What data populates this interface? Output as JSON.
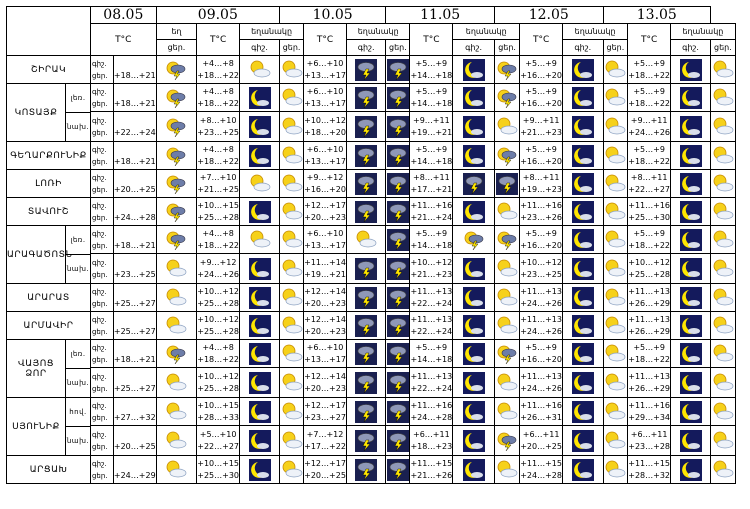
{
  "header": {
    "tc": "T°C",
    "weather": "եղանակը",
    "weather_cut": "եղ",
    "day": "ցեր.",
    "night": "գիշ.",
    "dates": [
      "08.05",
      "09.05",
      "10.05",
      "11.05",
      "12.05",
      "13.05"
    ]
  },
  "row_labels": {
    "night": "գիշ.",
    "day": "ցեր."
  },
  "regions": [
    {
      "name": "ՇԻՐԱԿ",
      "rows": [
        {
          "sub": "",
          "temps": [
            [
              "",
              "+18…+21"
            ],
            [
              "+4…+8",
              "+18…+22"
            ],
            [
              "+6…+10",
              "+13…+17"
            ],
            [
              "+5…+9",
              "+14…+18"
            ],
            [
              "+5…+9",
              "+16…+20"
            ],
            [
              "+5…+9",
              "+18…+22"
            ]
          ],
          "icons": [
            [
              "",
              "sun-storm"
            ],
            [
              "sun-cloud",
              "sun-cloud"
            ],
            [
              "storm",
              "storm"
            ],
            [
              "moon",
              "sun-storm"
            ],
            [
              "moon",
              "sun-cloud"
            ],
            [
              "moon",
              "sun-cloud"
            ]
          ]
        }
      ]
    },
    {
      "name": "ԿՈՏԱՅՔ",
      "rows": [
        {
          "sub": "լեռ.",
          "temps": [
            [
              "",
              "+18…+21"
            ],
            [
              "+4…+8",
              "+18…+22"
            ],
            [
              "+6…+10",
              "+13…+17"
            ],
            [
              "+5…+9",
              "+14…+18"
            ],
            [
              "+5…+9",
              "+16…+20"
            ],
            [
              "+5…+9",
              "+18…+22"
            ]
          ],
          "icons": [
            [
              "",
              "sun-storm"
            ],
            [
              "moon",
              "sun-cloud"
            ],
            [
              "storm",
              "storm"
            ],
            [
              "moon",
              "sun-storm"
            ],
            [
              "moon",
              "sun-cloud"
            ],
            [
              "moon",
              "sun-cloud"
            ]
          ]
        },
        {
          "sub": "նախ.",
          "temps": [
            [
              "",
              "+22…+24"
            ],
            [
              "+8…+10",
              "+23…+25"
            ],
            [
              "+10…+12",
              "+18…+20"
            ],
            [
              "+9…+11",
              "+19…+21"
            ],
            [
              "+9…+11",
              "+21…+23"
            ],
            [
              "+9…+11",
              "+24…+26"
            ]
          ],
          "icons": [
            [
              "",
              "sun-storm"
            ],
            [
              "moon",
              "sun-cloud"
            ],
            [
              "storm",
              "storm"
            ],
            [
              "moon",
              "sun-cloud"
            ],
            [
              "moon",
              "sun-cloud"
            ],
            [
              "moon",
              "sun-cloud"
            ]
          ]
        }
      ]
    },
    {
      "name": "ԳԵՂԱՐՔՈՒՆԻՔ",
      "rows": [
        {
          "sub": "",
          "temps": [
            [
              "",
              "+18…+21"
            ],
            [
              "+4…+8",
              "+18…+22"
            ],
            [
              "+6…+10",
              "+13…+17"
            ],
            [
              "+5…+9",
              "+14…+18"
            ],
            [
              "+5…+9",
              "+16…+20"
            ],
            [
              "+5…+9",
              "+18…+22"
            ]
          ],
          "icons": [
            [
              "",
              "sun-storm"
            ],
            [
              "moon",
              "sun-cloud"
            ],
            [
              "storm",
              "storm"
            ],
            [
              "moon",
              "sun-storm"
            ],
            [
              "moon",
              "sun-cloud"
            ],
            [
              "moon",
              "sun-cloud"
            ]
          ]
        }
      ]
    },
    {
      "name": "ԼՈՌԻ",
      "rows": [
        {
          "sub": "",
          "temps": [
            [
              "",
              "+20…+25"
            ],
            [
              "+7…+10",
              "+21…+25"
            ],
            [
              "+9…+12",
              "+16…+20"
            ],
            [
              "+8…+11",
              "+17…+21"
            ],
            [
              "+8…+11",
              "+19…+23"
            ],
            [
              "+8…+11",
              "+22…+27"
            ]
          ],
          "icons": [
            [
              "",
              "sun-storm"
            ],
            [
              "sun-cloud",
              "sun-cloud"
            ],
            [
              "storm",
              "storm"
            ],
            [
              "storm",
              "storm"
            ],
            [
              "moon",
              "sun-cloud"
            ],
            [
              "moon",
              "sun-cloud"
            ]
          ]
        }
      ]
    },
    {
      "name": "ՏԱՎՈՒՇ",
      "rows": [
        {
          "sub": "",
          "temps": [
            [
              "",
              "+24…+28"
            ],
            [
              "+10…+15",
              "+25…+28"
            ],
            [
              "+12…+17",
              "+20…+23"
            ],
            [
              "+11…+16",
              "+21…+24"
            ],
            [
              "+11…+16",
              "+23…+26"
            ],
            [
              "+11…+16",
              "+25…+30"
            ]
          ],
          "icons": [
            [
              "",
              "sun-storm"
            ],
            [
              "moon",
              "sun-cloud"
            ],
            [
              "storm",
              "storm"
            ],
            [
              "moon",
              "sun-cloud"
            ],
            [
              "moon",
              "sun-cloud"
            ],
            [
              "moon",
              "sun-cloud"
            ]
          ]
        }
      ]
    },
    {
      "name": "ԱՐԱԳԱԾՈՏՆ",
      "rows": [
        {
          "sub": "լեռ.",
          "temps": [
            [
              "",
              "+18…+21"
            ],
            [
              "+4…+8",
              "+18…+22"
            ],
            [
              "+6…+10",
              "+13…+17"
            ],
            [
              "+5…+9",
              "+14…+18"
            ],
            [
              "+5…+9",
              "+16…+20"
            ],
            [
              "+5…+9",
              "+18…+22"
            ]
          ],
          "icons": [
            [
              "",
              "sun-storm"
            ],
            [
              "sun-cloud",
              "sun-cloud"
            ],
            [
              "sun-cloud",
              "storm"
            ],
            [
              "sun-storm",
              "sun-storm"
            ],
            [
              "moon",
              "sun-cloud"
            ],
            [
              "moon",
              "sun-cloud"
            ]
          ]
        },
        {
          "sub": "նախ.",
          "temps": [
            [
              "",
              "+23…+25"
            ],
            [
              "+9…+12",
              "+24…+26"
            ],
            [
              "+11…+14",
              "+19…+21"
            ],
            [
              "+10…+12",
              "+21…+23"
            ],
            [
              "+10…+12",
              "+23…+25"
            ],
            [
              "+10…+12",
              "+25…+28"
            ]
          ],
          "icons": [
            [
              "",
              "sun-cloud"
            ],
            [
              "moon",
              "sun-cloud"
            ],
            [
              "storm",
              "storm"
            ],
            [
              "moon",
              "sun-cloud"
            ],
            [
              "moon",
              "sun-cloud"
            ],
            [
              "moon",
              "sun-cloud"
            ]
          ]
        }
      ]
    },
    {
      "name": "ԱՐԱՐԱՏ",
      "rows": [
        {
          "sub": "",
          "temps": [
            [
              "",
              "+25…+27"
            ],
            [
              "+10…+12",
              "+25…+28"
            ],
            [
              "+12…+14",
              "+20…+23"
            ],
            [
              "+11…+13",
              "+22…+24"
            ],
            [
              "+11…+13",
              "+24…+26"
            ],
            [
              "+11…+13",
              "+26…+29"
            ]
          ],
          "icons": [
            [
              "",
              "sun-cloud"
            ],
            [
              "moon",
              "sun-cloud"
            ],
            [
              "storm",
              "storm"
            ],
            [
              "moon",
              "sun-cloud"
            ],
            [
              "moon",
              "sun-cloud"
            ],
            [
              "moon",
              "sun-cloud"
            ]
          ]
        }
      ]
    },
    {
      "name": "ԱՐՄԱՎԻՐ",
      "rows": [
        {
          "sub": "",
          "temps": [
            [
              "",
              "+25…+27"
            ],
            [
              "+10…+12",
              "+25…+28"
            ],
            [
              "+12…+14",
              "+20…+23"
            ],
            [
              "+11…+13",
              "+22…+24"
            ],
            [
              "+11…+13",
              "+24…+26"
            ],
            [
              "+11…+13",
              "+26…+29"
            ]
          ],
          "icons": [
            [
              "",
              "sun-cloud"
            ],
            [
              "moon",
              "sun-cloud"
            ],
            [
              "storm",
              "storm"
            ],
            [
              "moon",
              "sun-cloud"
            ],
            [
              "moon",
              "sun-cloud"
            ],
            [
              "moon",
              "sun-cloud"
            ]
          ]
        }
      ]
    },
    {
      "name": "ՎԱՅՈՑ ՁՈՐ",
      "rows": [
        {
          "sub": "լեռ.",
          "temps": [
            [
              "",
              "+18…+21"
            ],
            [
              "+4…+8",
              "+18…+22"
            ],
            [
              "+6…+10",
              "+13…+17"
            ],
            [
              "+5…+9",
              "+14…+18"
            ],
            [
              "+5…+9",
              "+16…+20"
            ],
            [
              "+5…+9",
              "+18…+22"
            ]
          ],
          "icons": [
            [
              "",
              "sun-storm"
            ],
            [
              "moon",
              "sun-cloud"
            ],
            [
              "storm",
              "storm"
            ],
            [
              "moon",
              "sun-storm"
            ],
            [
              "moon",
              "sun-cloud"
            ],
            [
              "moon",
              "sun-cloud"
            ]
          ]
        },
        {
          "sub": "նախ.",
          "temps": [
            [
              "",
              "+25…+27"
            ],
            [
              "+10…+12",
              "+25…+28"
            ],
            [
              "+12…+14",
              "+20…+23"
            ],
            [
              "+11…+13",
              "+22…+24"
            ],
            [
              "+11…+13",
              "+24…+26"
            ],
            [
              "+11…+13",
              "+26…+29"
            ]
          ],
          "icons": [
            [
              "",
              "sun-cloud"
            ],
            [
              "moon",
              "sun-cloud"
            ],
            [
              "storm",
              "storm"
            ],
            [
              "moon",
              "sun-cloud"
            ],
            [
              "moon",
              "sun-cloud"
            ],
            [
              "moon",
              "sun-cloud"
            ]
          ]
        }
      ]
    },
    {
      "name": "ՍՅՈՒՆԻՔ",
      "rows": [
        {
          "sub": "հով.",
          "temps": [
            [
              "",
              "+27…+32"
            ],
            [
              "+10…+15",
              "+28…+33"
            ],
            [
              "+12…+17",
              "+23…+27"
            ],
            [
              "+11…+16",
              "+24…+28"
            ],
            [
              "+11…+16",
              "+26…+31"
            ],
            [
              "+11…+16",
              "+29…+34"
            ]
          ],
          "icons": [
            [
              "",
              "sun-cloud"
            ],
            [
              "moon",
              "sun-cloud"
            ],
            [
              "storm",
              "storm"
            ],
            [
              "moon",
              "sun-cloud"
            ],
            [
              "moon",
              "sun-cloud"
            ],
            [
              "moon",
              "sun-cloud"
            ]
          ]
        },
        {
          "sub": "նախ.",
          "temps": [
            [
              "",
              "+20…+25"
            ],
            [
              "+5…+10",
              "+22…+27"
            ],
            [
              "+7…+12",
              "+17…+22"
            ],
            [
              "+6…+11",
              "+18…+23"
            ],
            [
              "+6…+11",
              "+20…+25"
            ],
            [
              "+6…+11",
              "+23…+28"
            ]
          ],
          "icons": [
            [
              "",
              "sun-cloud"
            ],
            [
              "moon",
              "sun-cloud"
            ],
            [
              "storm",
              "storm"
            ],
            [
              "moon",
              "sun-storm"
            ],
            [
              "moon",
              "sun-cloud"
            ],
            [
              "moon",
              "sun-cloud"
            ]
          ]
        }
      ]
    },
    {
      "name": "ԱՐՑԱԽ",
      "rows": [
        {
          "sub": "",
          "temps": [
            [
              "",
              "+24…+29"
            ],
            [
              "+10…+15",
              "+25…+30"
            ],
            [
              "+12…+17",
              "+20…+25"
            ],
            [
              "+11…+15",
              "+21…+26"
            ],
            [
              "+11…+15",
              "+24…+28"
            ],
            [
              "+11…+15",
              "+28…+32"
            ]
          ],
          "icons": [
            [
              "",
              "sun-cloud"
            ],
            [
              "moon",
              "sun-cloud"
            ],
            [
              "storm",
              "storm"
            ],
            [
              "moon",
              "sun-cloud"
            ],
            [
              "moon",
              "sun-cloud"
            ],
            [
              "moon",
              "sun-cloud"
            ]
          ]
        }
      ]
    }
  ]
}
